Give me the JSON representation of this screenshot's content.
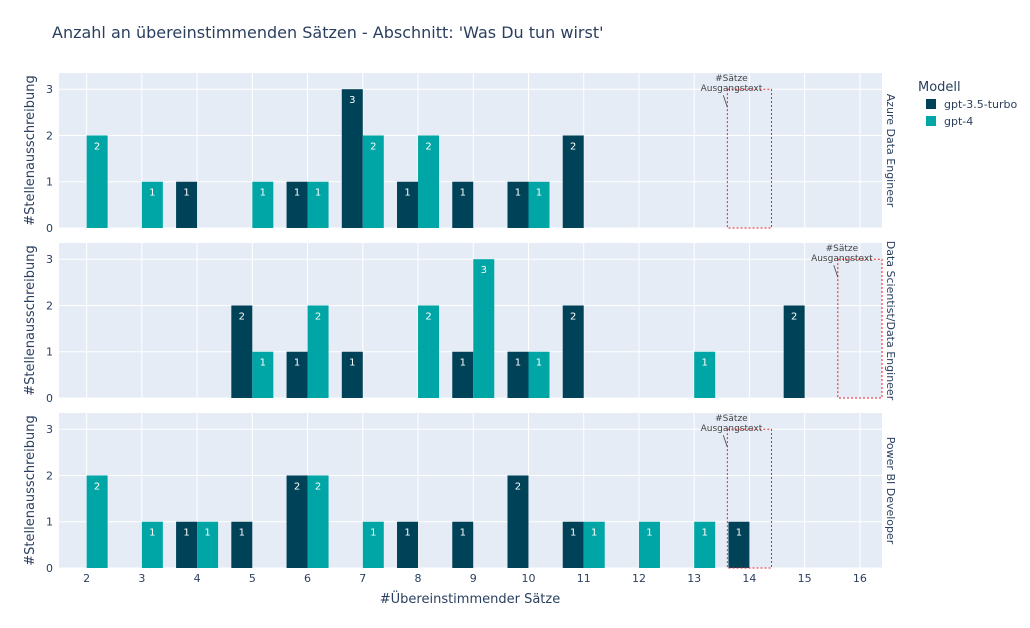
{
  "chart_data": {
    "type": "bar",
    "title": "Anzahl an übereinstimmenden Sätzen - Abschnitt: 'Was Du tun wirst'",
    "xlabel": "#Übereinstimmender Sätze",
    "ylabel": "#Stellenausschreibung",
    "x_ticks": [
      2,
      3,
      4,
      5,
      6,
      7,
      8,
      9,
      10,
      11,
      12,
      13,
      14,
      15,
      16
    ],
    "xlim": [
      1.5,
      16.4
    ],
    "ylim": [
      0,
      3.35
    ],
    "y_ticks": [
      0,
      1,
      2,
      3
    ],
    "legend": {
      "title": "Modell",
      "position": "top-right",
      "entries": [
        {
          "name": "gpt-3.5-turbo",
          "color": "#004258"
        },
        {
          "name": "gpt-4",
          "color": "#00a6a6"
        }
      ]
    },
    "panels": [
      {
        "facet": "Azure Data Engineer",
        "annotation": {
          "lines": [
            "#Sätze",
            "Ausgangstext"
          ],
          "x_range": [
            13.6,
            14.4
          ],
          "y_max": 3
        },
        "series": [
          {
            "name": "gpt-3.5-turbo",
            "points": [
              [
                4,
                1
              ],
              [
                6,
                1
              ],
              [
                7,
                3
              ],
              [
                8,
                1
              ],
              [
                9,
                1
              ],
              [
                10,
                1
              ],
              [
                11,
                2
              ]
            ]
          },
          {
            "name": "gpt-4",
            "points": [
              [
                2,
                2
              ],
              [
                3,
                1
              ],
              [
                5,
                1
              ],
              [
                6,
                1
              ],
              [
                7,
                2
              ],
              [
                8,
                2
              ],
              [
                10,
                1
              ]
            ]
          }
        ]
      },
      {
        "facet": "Data Scientist/Data Engineer",
        "annotation": {
          "lines": [
            "#Sätze",
            "Ausgangstext"
          ],
          "x_range": [
            15.6,
            16.4
          ],
          "y_max": 3
        },
        "series": [
          {
            "name": "gpt-3.5-turbo",
            "points": [
              [
                5,
                2
              ],
              [
                6,
                1
              ],
              [
                7,
                1
              ],
              [
                9,
                1
              ],
              [
                10,
                1
              ],
              [
                11,
                2
              ],
              [
                15,
                2
              ]
            ]
          },
          {
            "name": "gpt-4",
            "points": [
              [
                5,
                1
              ],
              [
                6,
                2
              ],
              [
                8,
                2
              ],
              [
                9,
                3
              ],
              [
                10,
                1
              ],
              [
                13,
                1
              ]
            ]
          }
        ]
      },
      {
        "facet": "Power BI Developer",
        "annotation": {
          "lines": [
            "#Sätze",
            "Ausgangstext"
          ],
          "x_range": [
            13.6,
            14.4
          ],
          "y_max": 3
        },
        "series": [
          {
            "name": "gpt-3.5-turbo",
            "points": [
              [
                4,
                1
              ],
              [
                5,
                1
              ],
              [
                6,
                2
              ],
              [
                8,
                1
              ],
              [
                9,
                1
              ],
              [
                10,
                2
              ],
              [
                11,
                1
              ],
              [
                14,
                1
              ]
            ]
          },
          {
            "name": "gpt-4",
            "points": [
              [
                2,
                2
              ],
              [
                3,
                1
              ],
              [
                4,
                1
              ],
              [
                6,
                2
              ],
              [
                7,
                1
              ],
              [
                11,
                1
              ],
              [
                12,
                1
              ],
              [
                13,
                1
              ]
            ]
          }
        ]
      }
    ]
  }
}
